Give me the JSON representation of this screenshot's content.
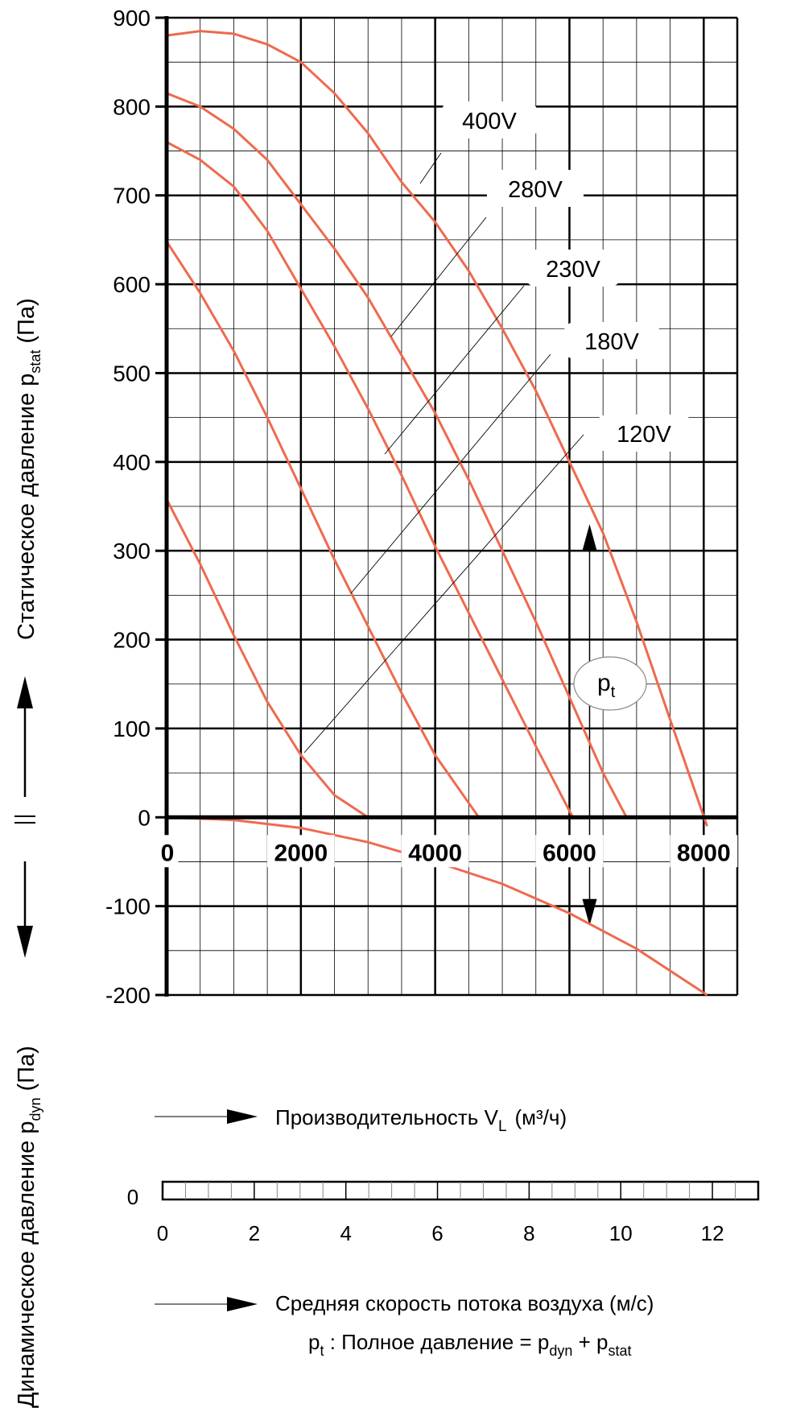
{
  "chart_data": {
    "type": "line",
    "xlabel": "Производительность V",
    "xlabel_sub": "L",
    "xlabel_unit": "(м³/ч)",
    "ylabel_upper": "Статическое давление p",
    "ylabel_upper_sub": "stat",
    "ylabel_upper_unit": "(Па)",
    "ylabel_lower": "Динамическое давление p",
    "ylabel_lower_sub": "dyn",
    "ylabel_lower_unit": "(Па)",
    "xlim": [
      0,
      8500
    ],
    "ylim": [
      -200,
      900
    ],
    "x_ticks": [
      "0",
      "2000",
      "4000",
      "6000",
      "8000"
    ],
    "y_ticks": [
      "900",
      "800",
      "700",
      "600",
      "500",
      "400",
      "300",
      "200",
      "100",
      "0",
      "-100",
      "-200"
    ],
    "grid": true,
    "series": [
      {
        "name": "400V",
        "x": [
          0,
          500,
          1000,
          1500,
          2000,
          2500,
          3000,
          3500,
          4000,
          4500,
          5000,
          5500,
          6000,
          6500,
          7000,
          7500,
          8050
        ],
        "y": [
          880,
          885,
          882,
          870,
          850,
          815,
          770,
          715,
          670,
          615,
          550,
          480,
          400,
          320,
          220,
          110,
          -10
        ]
      },
      {
        "name": "280V",
        "x": [
          0,
          500,
          1000,
          1500,
          2000,
          2500,
          3000,
          3500,
          4000,
          4500,
          5000,
          5500,
          6000,
          6500,
          6850
        ],
        "y": [
          815,
          800,
          775,
          740,
          690,
          640,
          585,
          520,
          455,
          380,
          300,
          220,
          135,
          50,
          0
        ]
      },
      {
        "name": "230V",
        "x": [
          0,
          500,
          1000,
          1500,
          2000,
          2500,
          3000,
          3500,
          4000,
          4500,
          5000,
          5500,
          6050
        ],
        "y": [
          760,
          740,
          710,
          660,
          595,
          530,
          460,
          385,
          305,
          230,
          155,
          80,
          0
        ]
      },
      {
        "name": "180V",
        "x": [
          0,
          500,
          1000,
          1500,
          2000,
          2500,
          3000,
          3500,
          4000,
          4650
        ],
        "y": [
          648,
          590,
          525,
          450,
          370,
          290,
          215,
          140,
          70,
          0
        ]
      },
      {
        "name": "120V",
        "x": [
          0,
          500,
          1000,
          1500,
          2000,
          2500,
          3000
        ],
        "y": [
          358,
          285,
          205,
          130,
          70,
          25,
          0
        ]
      }
    ],
    "dynamic_pressure": {
      "x": [
        0,
        1000,
        2000,
        3000,
        4000,
        5000,
        6000,
        7000,
        8050
      ],
      "y": [
        0,
        -3,
        -12,
        -28,
        -50,
        -75,
        -108,
        -148,
        -200
      ]
    },
    "annotation_pt": "p",
    "annotation_pt_sub": "t",
    "speed_axis": {
      "label": "Средняя скорость потока воздуха (м/с)",
      "zero_label": "0",
      "ticks": [
        "0",
        "2",
        "4",
        "6",
        "8",
        "10",
        "12"
      ],
      "range": [
        0,
        13
      ]
    },
    "footnote": {
      "a": "p",
      "a_sub": "t",
      "b": " : Полное давление = p",
      "b_sub": "dyn",
      "c": " + p",
      "c_sub": "stat"
    },
    "colors": {
      "curve": "#EE6A4F",
      "axis": "#000000",
      "grid": "#000000"
    }
  }
}
